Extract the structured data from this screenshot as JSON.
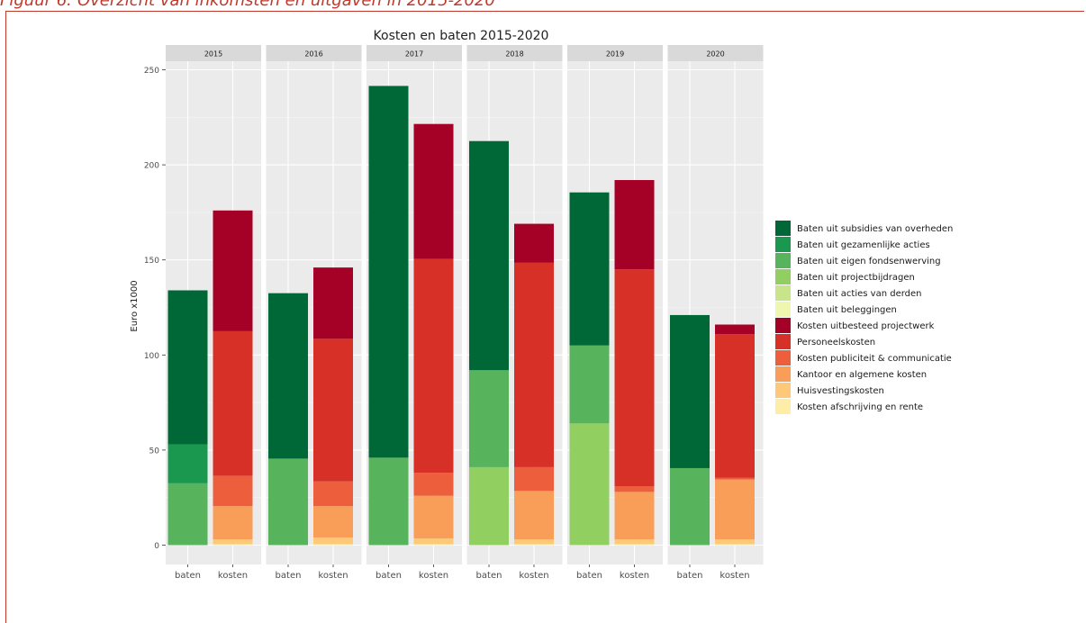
{
  "caption": "Figuur 6: Overzicht van inkomsten en uitgaven in 2015-2020",
  "colors": {
    "Baten uit subsidies van overheden": "#006837",
    "Baten uit gezamenlijke acties": "#1a9850",
    "Baten uit eigen fondsenwerving": "#57b35c",
    "Baten uit projectbijdragen": "#91cf60",
    "Baten uit acties van derden": "#c8e58a",
    "Baten uit beleggingen": "#eef6b0",
    "Kosten uitbesteed projectwerk": "#a50026",
    "Personeelskosten": "#d73027",
    "Kosten publiciteit & communicatie": "#ec5e3c",
    "Kantoor en algemene kosten": "#f99e59",
    "Huisvestingskosten": "#fdc978",
    "Kosten afschrijving en rente": "#feeda7"
  },
  "chart_data": {
    "type": "bar",
    "stacked": true,
    "facets": [
      "2015",
      "2016",
      "2017",
      "2018",
      "2019",
      "2020"
    ],
    "categories": [
      "baten",
      "kosten"
    ],
    "title": "Kosten en baten 2015-2020",
    "xlabel": "",
    "ylabel": "Euro x1000",
    "ylim": [
      0,
      260
    ],
    "yticks": [
      "0",
      "50",
      "100",
      "150",
      "200",
      "250"
    ],
    "grid": true,
    "legend_position": "right",
    "legend": [
      "Baten uit subsidies van overheden",
      "Baten uit gezamenlijke acties",
      "Baten uit eigen fondsenwerving",
      "Baten uit projectbijdragen",
      "Baten uit acties van derden",
      "Baten uit beleggingen",
      "Kosten uitbesteed projectwerk",
      "Personeelskosten",
      "Kosten publiciteit & communicatie",
      "Kantoor en algemene kosten",
      "Huisvestingskosten",
      "Kosten afschrijving en rente"
    ],
    "bars": {
      "2015": {
        "baten": [
          [
            "Baten uit eigen fondsenwerving",
            32.5
          ],
          [
            "Baten uit gezamenlijke acties",
            20.5
          ],
          [
            "Baten uit subsidies van overheden",
            81
          ]
        ],
        "kosten": [
          [
            "Kosten afschrijving en rente",
            0.5
          ],
          [
            "Huisvestingskosten",
            2.5
          ],
          [
            "Kantoor en algemene kosten",
            17.5
          ],
          [
            "Kosten publiciteit & communicatie",
            16
          ],
          [
            "Personeelskosten",
            76
          ],
          [
            "Kosten uitbesteed projectwerk",
            63.5
          ]
        ]
      },
      "2016": {
        "baten": [
          [
            "Baten uit eigen fondsenwerving",
            45.5
          ],
          [
            "Baten uit subsidies van overheden",
            87
          ]
        ],
        "kosten": [
          [
            "Kosten afschrijving en rente",
            0.5
          ],
          [
            "Huisvestingskosten",
            3.5
          ],
          [
            "Kantoor en algemene kosten",
            16.5
          ],
          [
            "Kosten publiciteit & communicatie",
            13
          ],
          [
            "Personeelskosten",
            75
          ],
          [
            "Kosten uitbesteed projectwerk",
            37.5
          ]
        ]
      },
      "2017": {
        "baten": [
          [
            "Baten uit eigen fondsenwerving",
            46
          ],
          [
            "Baten uit subsidies van overheden",
            195.5
          ]
        ],
        "kosten": [
          [
            "Kosten afschrijving en rente",
            0.5
          ],
          [
            "Huisvestingskosten",
            3
          ],
          [
            "Kantoor en algemene kosten",
            22.5
          ],
          [
            "Kosten publiciteit & communicatie",
            12
          ],
          [
            "Personeelskosten",
            112.5
          ],
          [
            "Kosten uitbesteed projectwerk",
            71
          ]
        ]
      },
      "2018": {
        "baten": [
          [
            "Baten uit projectbijdragen",
            41
          ],
          [
            "Baten uit eigen fondsenwerving",
            51
          ],
          [
            "Baten uit subsidies van overheden",
            120.5
          ]
        ],
        "kosten": [
          [
            "Kosten afschrijving en rente",
            0.5
          ],
          [
            "Huisvestingskosten",
            2.5
          ],
          [
            "Kantoor en algemene kosten",
            25.5
          ],
          [
            "Kosten publiciteit & communicatie",
            12.5
          ],
          [
            "Personeelskosten",
            107.5
          ],
          [
            "Kosten uitbesteed projectwerk",
            20.5
          ]
        ]
      },
      "2019": {
        "baten": [
          [
            "Baten uit projectbijdragen",
            64
          ],
          [
            "Baten uit eigen fondsenwerving",
            41
          ],
          [
            "Baten uit subsidies van overheden",
            80.5
          ]
        ],
        "kosten": [
          [
            "Kosten afschrijving en rente",
            0.5
          ],
          [
            "Huisvestingskosten",
            2.5
          ],
          [
            "Kantoor en algemene kosten",
            25
          ],
          [
            "Kosten publiciteit & communicatie",
            3
          ],
          [
            "Personeelskosten",
            114
          ],
          [
            "Kosten uitbesteed projectwerk",
            47
          ]
        ]
      },
      "2020": {
        "baten": [
          [
            "Baten uit eigen fondsenwerving",
            40.5
          ],
          [
            "Baten uit subsidies van overheden",
            80.5
          ]
        ],
        "kosten": [
          [
            "Kosten afschrijving en rente",
            0.5
          ],
          [
            "Huisvestingskosten",
            2.5
          ],
          [
            "Kantoor en algemene kosten",
            31.5
          ],
          [
            "Kosten publiciteit & communicatie",
            1
          ],
          [
            "Personeelskosten",
            75.5
          ],
          [
            "Kosten uitbesteed projectwerk",
            5
          ]
        ]
      }
    }
  }
}
